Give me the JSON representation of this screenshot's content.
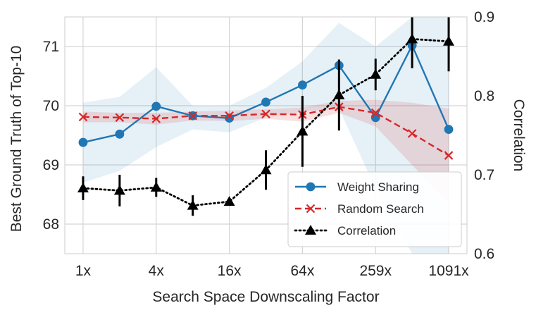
{
  "chart_data": {
    "type": "line",
    "title": "",
    "xlabel": "Search Space Downscaling Factor",
    "ylabel": "Best Ground Truth of Top-10",
    "y2label": "Correlation",
    "x_tick_labels": [
      "1x",
      "4x",
      "16x",
      "64x",
      "259x",
      "1091x"
    ],
    "x_tick_positions": [
      0,
      2,
      4,
      6,
      8,
      10
    ],
    "x": [
      0,
      1,
      2,
      3,
      4,
      5,
      6,
      7,
      8,
      9,
      10
    ],
    "ylim": [
      67.5,
      71.5
    ],
    "yticks": [
      68,
      69,
      70,
      71
    ],
    "y2lim": [
      0.6,
      0.9
    ],
    "y2ticks": [
      0.6,
      0.7,
      0.8,
      0.9
    ],
    "grid": true,
    "legend_position": "lower-right",
    "series": [
      {
        "name": "Weight Sharing",
        "axis": "left",
        "color": "#1f77b4",
        "marker": "circle",
        "linestyle": "solid",
        "values": [
          69.38,
          69.52,
          69.99,
          69.83,
          69.79,
          70.06,
          70.35,
          70.68,
          69.8,
          71.02,
          69.6
        ],
        "band_low": [
          68.7,
          68.9,
          69.3,
          69.6,
          69.55,
          69.8,
          69.9,
          69.95,
          68.6,
          67.5,
          67.5
        ],
        "band_high": [
          70.05,
          70.15,
          70.65,
          70.0,
          70.0,
          70.3,
          70.75,
          71.4,
          71.0,
          71.5,
          71.6
        ]
      },
      {
        "name": "Random Search",
        "axis": "left",
        "color": "#d62728",
        "marker": "x",
        "linestyle": "dashed",
        "values": [
          69.81,
          69.8,
          69.78,
          69.83,
          69.83,
          69.86,
          69.85,
          69.98,
          69.88,
          69.53,
          69.16
        ],
        "band_low": [
          69.72,
          69.72,
          69.68,
          69.75,
          69.74,
          69.78,
          69.73,
          69.88,
          69.65,
          69.0,
          68.35
        ],
        "band_high": [
          69.9,
          69.88,
          69.88,
          69.9,
          69.92,
          69.94,
          69.97,
          70.08,
          70.1,
          70.05,
          69.95
        ]
      },
      {
        "name": "Correlation",
        "axis": "right",
        "color": "#000000",
        "marker": "triangle",
        "linestyle": "dotted",
        "values": [
          0.683,
          0.68,
          0.684,
          0.661,
          0.666,
          0.706,
          0.755,
          0.801,
          0.827,
          0.872,
          0.869
        ],
        "err": [
          0.015,
          0.02,
          0.012,
          0.013,
          0.003,
          0.025,
          0.045,
          0.045,
          0.02,
          0.037,
          0.038
        ]
      }
    ]
  }
}
